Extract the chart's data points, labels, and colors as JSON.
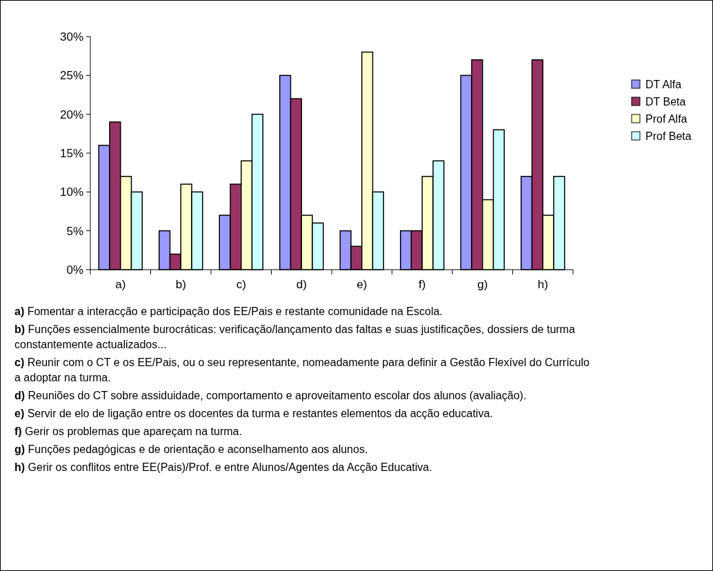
{
  "chart_data": {
    "type": "bar",
    "categories": [
      "a)",
      "b)",
      "c)",
      "d)",
      "e)",
      "f)",
      "g)",
      "h)"
    ],
    "series": [
      {
        "name": "DT  Alfa",
        "color": "#9999ff",
        "values": [
          16,
          5,
          7,
          25,
          5,
          5,
          25,
          12
        ]
      },
      {
        "name": "DT  Beta",
        "color": "#993366",
        "values": [
          19,
          2,
          11,
          22,
          3,
          5,
          27,
          27
        ]
      },
      {
        "name": "Prof Alfa",
        "color": "#ffffcc",
        "values": [
          12,
          11,
          14,
          7,
          28,
          12,
          9,
          7
        ]
      },
      {
        "name": "Prof Beta",
        "color": "#ccffff",
        "values": [
          10,
          10,
          20,
          6,
          10,
          14,
          18,
          12
        ]
      }
    ],
    "ylim": [
      0,
      30
    ],
    "yticks": [
      {
        "value": 0,
        "label": "0%"
      },
      {
        "value": 5,
        "label": "5%"
      },
      {
        "value": 10,
        "label": "10%"
      },
      {
        "value": 15,
        "label": "15%"
      },
      {
        "value": 20,
        "label": "20%"
      },
      {
        "value": 25,
        "label": "25%"
      },
      {
        "value": 30,
        "label": "30%"
      }
    ],
    "grid": false,
    "legend": "right",
    "annotations": [
      "a) Fomentar a interacção e participação dos EE/Pais e restante comunidade na Escola.",
      "b) Funções essencialmente burocráticas: verificação/lançamento das faltas e suas justificações, dossiers de turma constantemente actualizados...",
      "c) Reunir com o CT e os EE/Pais, ou o seu representante, nomeadamente para definir a Gestão Flexível do Currículo a adoptar na turma.",
      "d) Reuniões do CT sobre assiduidade, comportamento e aproveitamento escolar dos alunos (avaliação).",
      "e) Servir de elo de ligação entre os docentes da turma e restantes elementos da acção educativa.",
      "f) Gerir os problemas que apareçam na turma.",
      "g) Funções pedagógicas e de orientação e aconselhamento aos alunos.",
      "h) Gerir os conflitos entre EE(Pais)/Prof. e entre Alunos/Agentes da Acção Educativa."
    ]
  }
}
